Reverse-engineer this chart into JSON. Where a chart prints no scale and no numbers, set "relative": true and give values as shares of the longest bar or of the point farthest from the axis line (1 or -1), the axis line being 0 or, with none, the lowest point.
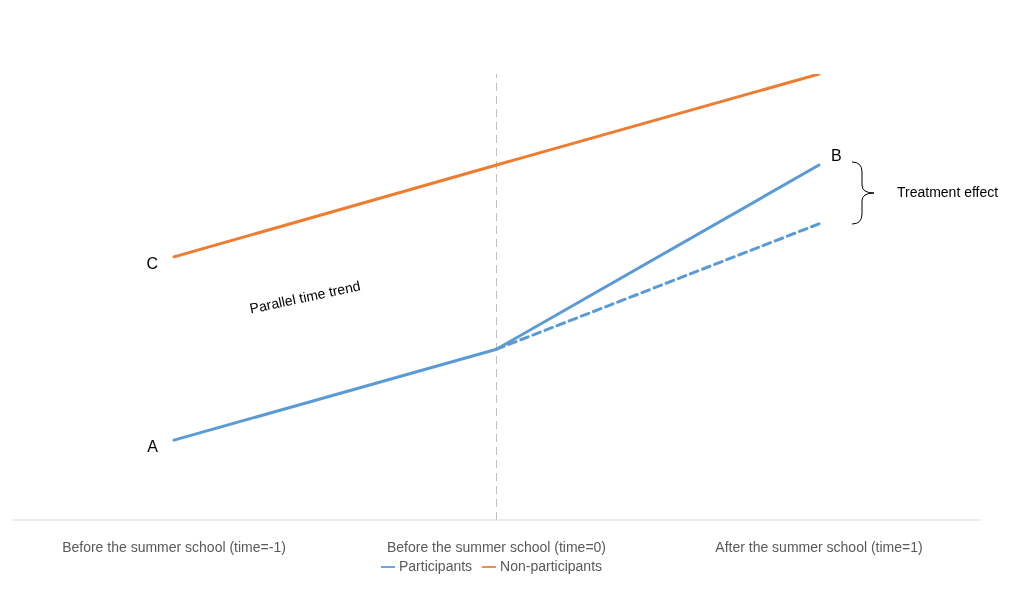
{
  "chart_data": {
    "type": "line",
    "relative": true,
    "categories": [
      "Before the summer school (time=-1)",
      "Before the summer school (time=0)",
      "After the summer school (time=1)"
    ],
    "series": [
      {
        "name": "Participants",
        "color": "#5b9bd5",
        "values": [
          0.179,
          0.383,
          0.796
        ]
      },
      {
        "name": "Non-participants",
        "color": "#ed7d31",
        "values": [
          0.59,
          0.796,
          1
        ]
      },
      {
        "color": "#5b9bd5",
        "line_style": "dashed",
        "values": [
          null,
          0.383,
          0.664
        ]
      }
    ],
    "ref_lines": [
      {
        "axis": "x",
        "value": "Before the summer school (time=0)",
        "color": "#bfbfbf",
        "line_style": "dashed"
      }
    ],
    "annotations": [
      {
        "text": "A",
        "x": "Before the summer school (time=-1)",
        "y": 0.179
      },
      {
        "text": "C",
        "x": "Before the summer school (time=-1)",
        "y": 0.59
      },
      {
        "text": "B",
        "x": "After the summer school (time=1)",
        "y": 0.796
      },
      "Parallel time trend",
      "Treatment effect"
    ],
    "grid": false,
    "legend": "bottom",
    "line_style": "solid",
    "marker": "none"
  }
}
